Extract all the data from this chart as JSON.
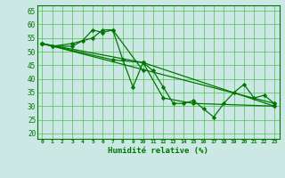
{
  "x": [
    0,
    1,
    2,
    3,
    4,
    5,
    6,
    7,
    8,
    9,
    10,
    11,
    12,
    13,
    14,
    15,
    16,
    17,
    18,
    19,
    20,
    21,
    22,
    23
  ],
  "line1": [
    53,
    52,
    null,
    53,
    null,
    55,
    58,
    58,
    null,
    null,
    43,
    null,
    null,
    null,
    null,
    null,
    null,
    null,
    null,
    null,
    null,
    null,
    null,
    null
  ],
  "line2": [
    53,
    52,
    null,
    52,
    54,
    58,
    57,
    58,
    47,
    37,
    46,
    43,
    37,
    31,
    31,
    32,
    29,
    26,
    31,
    35,
    38,
    33,
    34,
    31
  ],
  "line3": [
    53,
    null,
    null,
    null,
    null,
    null,
    null,
    47,
    null,
    null,
    46,
    null,
    33,
    null,
    null,
    31,
    null,
    null,
    null,
    null,
    null,
    null,
    null,
    30
  ],
  "line4": [
    53,
    null,
    null,
    null,
    null,
    null,
    null,
    null,
    null,
    null,
    46,
    null,
    null,
    null,
    null,
    null,
    null,
    null,
    null,
    null,
    null,
    null,
    null,
    30
  ],
  "line5": [
    53,
    null,
    null,
    null,
    null,
    null,
    null,
    null,
    null,
    null,
    null,
    null,
    null,
    null,
    null,
    null,
    null,
    null,
    null,
    null,
    null,
    null,
    null,
    31
  ],
  "xlabel": "Humidité relative (%)",
  "ylim": [
    18,
    67
  ],
  "yticks": [
    20,
    25,
    30,
    35,
    40,
    45,
    50,
    55,
    60,
    65
  ],
  "xticks": [
    0,
    1,
    2,
    3,
    4,
    5,
    6,
    7,
    8,
    9,
    10,
    11,
    12,
    13,
    14,
    15,
    16,
    17,
    18,
    19,
    20,
    21,
    22,
    23
  ],
  "bg_color": "#cce8e4",
  "line_color": "#007700",
  "grid_color": "#44bb44",
  "grid_alpha": 0.9,
  "figsize": [
    3.2,
    2.0
  ],
  "dpi": 100
}
